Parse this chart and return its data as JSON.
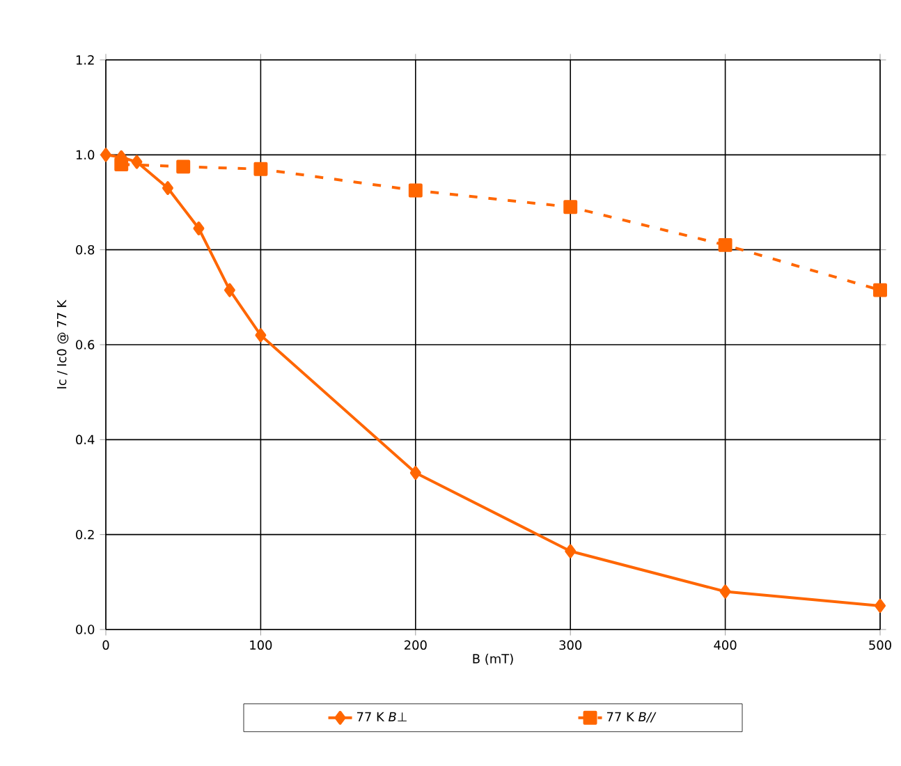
{
  "chart_data": {
    "type": "line",
    "xlabel": "B (mT)",
    "ylabel": "Ic / Ic0 @ 77 K",
    "xlim": [
      0,
      500
    ],
    "xticks": [
      0,
      100,
      200,
      300,
      400,
      500
    ],
    "ylim": [
      0,
      1.2
    ],
    "yticks": [
      {
        "value": 0,
        "label": "0.0"
      },
      0.2,
      0.4,
      0.6,
      0.8,
      {
        "value": 1,
        "label": "1.0"
      },
      1.2
    ],
    "grid": true,
    "legend": "bottom",
    "series": [
      {
        "name": "77 K *B⊥*",
        "color": "#ff6600",
        "marker": "diamond",
        "line_style": "solid",
        "x": [
          0,
          10,
          20,
          40,
          60,
          80,
          100,
          200,
          300,
          400,
          500
        ],
        "values": [
          1.0,
          0.995,
          0.985,
          0.93,
          0.845,
          0.715,
          0.62,
          0.33,
          0.165,
          0.08,
          0.05
        ]
      },
      {
        "name": "77 K *B//*",
        "color": "#ff6600",
        "marker": "square",
        "line_style": "dashed",
        "x": [
          10,
          50,
          100,
          200,
          300,
          400,
          500
        ],
        "values": [
          0.98,
          0.975,
          0.97,
          0.925,
          0.89,
          0.81,
          0.715
        ]
      }
    ]
  }
}
